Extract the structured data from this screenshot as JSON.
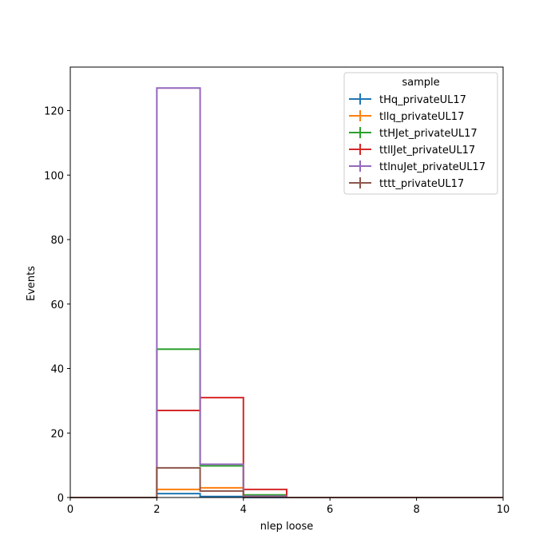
{
  "chart_data": {
    "type": "histogram-step",
    "xlabel": "nlep loose",
    "ylabel": "Events",
    "xlim": [
      0,
      10
    ],
    "ylim": [
      0,
      133.5
    ],
    "x_ticks": [
      0,
      2,
      4,
      6,
      8,
      10
    ],
    "y_ticks": [
      0,
      20,
      40,
      60,
      80,
      100,
      120
    ],
    "bin_edges": [
      0,
      1,
      2,
      3,
      4,
      5,
      6,
      7,
      8,
      9,
      10
    ],
    "legend": {
      "title": "sample",
      "position": "top-right"
    },
    "series": [
      {
        "name": "tHq_privateUL17",
        "color": "#1f77b4",
        "values": [
          0,
          0,
          1.2,
          0.3,
          0,
          0,
          0,
          0,
          0,
          0
        ]
      },
      {
        "name": "tllq_privateUL17",
        "color": "#ff7f0e",
        "values": [
          0,
          0,
          2.5,
          3.0,
          0.2,
          0,
          0,
          0,
          0,
          0
        ]
      },
      {
        "name": "ttHJet_privateUL17",
        "color": "#2ca02c",
        "values": [
          0,
          0,
          46,
          9.8,
          0.8,
          0,
          0,
          0,
          0,
          0
        ]
      },
      {
        "name": "ttllJet_privateUL17",
        "color": "#d62728",
        "values": [
          0,
          0,
          27,
          31,
          2.5,
          0,
          0,
          0,
          0,
          0
        ]
      },
      {
        "name": "ttlnuJet_privateUL17",
        "color": "#9467bd",
        "values": [
          0,
          0,
          127,
          10.3,
          0.4,
          0,
          0,
          0,
          0,
          0
        ]
      },
      {
        "name": "tttt_privateUL17",
        "color": "#8c564b",
        "values": [
          0,
          0,
          9.2,
          2.0,
          0.1,
          0,
          0,
          0,
          0,
          0
        ]
      }
    ]
  }
}
